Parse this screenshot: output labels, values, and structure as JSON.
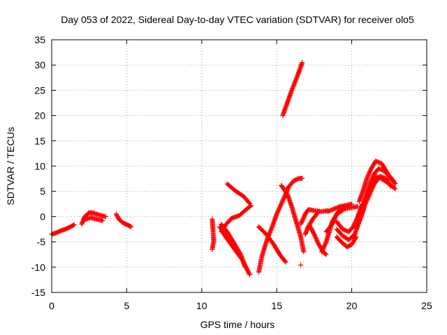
{
  "chart_data": {
    "type": "scatter",
    "title": "Day 053 of 2022, Sidereal Day-to-day VTEC variation (SDTVAR) for receiver olo5",
    "xlabel": "GPS time / hours",
    "ylabel": "SDTVAR / TECUs",
    "xlim": [
      0,
      25
    ],
    "ylim": [
      -15,
      35
    ],
    "xticks": [
      "0",
      "5",
      "10",
      "15",
      "20",
      "25"
    ],
    "yticks": [
      "-15",
      "-10",
      "-5",
      "0",
      "5",
      "10",
      "15",
      "20",
      "25",
      "30",
      "35"
    ],
    "xtick_values": [
      0,
      5,
      10,
      15,
      20,
      25
    ],
    "ytick_values": [
      -15,
      -10,
      -5,
      0,
      5,
      10,
      15,
      20,
      25,
      30,
      35
    ],
    "grid": true,
    "marker": "+",
    "marker_color": "#ff0000",
    "segments": [
      [
        [
          0.0,
          -3.5
        ],
        [
          0.3,
          -3.2
        ],
        [
          0.6,
          -2.8
        ],
        [
          0.9,
          -2.5
        ],
        [
          1.2,
          -2.1
        ],
        [
          1.5,
          -1.6
        ]
      ],
      [
        [
          2.0,
          -1.5
        ],
        [
          2.2,
          0.0
        ],
        [
          2.5,
          0.8
        ],
        [
          2.8,
          0.7
        ],
        [
          3.2,
          0.3
        ],
        [
          3.6,
          0.0
        ]
      ],
      [
        [
          2.2,
          -0.6
        ],
        [
          2.6,
          -0.2
        ],
        [
          3.0,
          -0.5
        ],
        [
          3.4,
          -0.8
        ]
      ],
      [
        [
          4.3,
          0.5
        ],
        [
          4.5,
          -0.6
        ],
        [
          4.8,
          -1.3
        ],
        [
          5.1,
          -1.7
        ],
        [
          5.3,
          -2.0
        ]
      ],
      [
        [
          10.7,
          -0.5
        ],
        [
          10.75,
          -2.5
        ],
        [
          10.8,
          -4.8
        ],
        [
          10.7,
          -6.5
        ]
      ],
      [
        [
          11.2,
          -2.0
        ],
        [
          11.6,
          -4.0
        ],
        [
          12.2,
          -6.5
        ],
        [
          12.7,
          -8.5
        ],
        [
          13.2,
          -11.5
        ]
      ],
      [
        [
          11.3,
          -1.5
        ],
        [
          11.7,
          -3.0
        ],
        [
          12.1,
          -5.0
        ],
        [
          12.6,
          -7.5
        ],
        [
          12.9,
          -10.0
        ]
      ],
      [
        [
          11.3,
          -3.0
        ],
        [
          11.6,
          -1.6
        ],
        [
          12.0,
          -0.3
        ],
        [
          12.5,
          0.2
        ],
        [
          13.0,
          1.5
        ],
        [
          13.3,
          2.2
        ]
      ],
      [
        [
          11.7,
          6.5
        ],
        [
          12.2,
          5.2
        ],
        [
          12.8,
          4.0
        ],
        [
          13.2,
          2.6
        ]
      ],
      [
        [
          13.8,
          -11.0
        ],
        [
          14.0,
          -8.0
        ],
        [
          14.2,
          -6.0
        ],
        [
          14.4,
          -4.2
        ],
        [
          14.7,
          -2.0
        ],
        [
          15.0,
          0.5
        ],
        [
          15.3,
          2.5
        ],
        [
          15.6,
          4.5
        ],
        [
          15.8,
          6.0
        ]
      ],
      [
        [
          13.8,
          -2.0
        ],
        [
          14.3,
          -3.5
        ],
        [
          14.8,
          -5.5
        ],
        [
          15.2,
          -7.5
        ],
        [
          15.6,
          -9.0
        ]
      ],
      [
        [
          15.3,
          6.2
        ],
        [
          15.7,
          4.5
        ],
        [
          16.0,
          2.0
        ],
        [
          16.3,
          -1.0
        ],
        [
          16.6,
          -4.0
        ],
        [
          16.8,
          -7.0
        ]
      ],
      [
        [
          15.4,
          20.0
        ],
        [
          15.7,
          22.5
        ],
        [
          16.0,
          25.0
        ],
        [
          16.4,
          28.0
        ],
        [
          16.7,
          30.5
        ]
      ],
      [
        [
          15.7,
          5.5
        ],
        [
          16.1,
          7.0
        ],
        [
          16.4,
          7.5
        ],
        [
          16.7,
          7.6
        ]
      ],
      [
        [
          16.6,
          -9.6
        ]
      ],
      [
        [
          16.6,
          -1.5
        ],
        [
          16.9,
          0.5
        ],
        [
          17.1,
          1.4
        ],
        [
          17.5,
          1.2
        ],
        [
          18.0,
          1.0
        ],
        [
          18.4,
          1.2
        ]
      ],
      [
        [
          16.9,
          -3.5
        ],
        [
          17.1,
          -2.0
        ],
        [
          17.4,
          -0.5
        ],
        [
          17.8,
          1.0
        ]
      ],
      [
        [
          17.2,
          -1.8
        ],
        [
          17.5,
          -3.5
        ],
        [
          17.8,
          -5.5
        ],
        [
          18.1,
          -7.0
        ],
        [
          18.3,
          -7.5
        ]
      ],
      [
        [
          18.3,
          -3.0
        ],
        [
          18.7,
          -1.5
        ],
        [
          19.0,
          0.5
        ],
        [
          19.3,
          1.8
        ],
        [
          19.5,
          2.0
        ]
      ],
      [
        [
          18.4,
          1.0
        ],
        [
          18.8,
          1.5
        ],
        [
          19.2,
          2.0
        ],
        [
          19.6,
          2.2
        ],
        [
          20.0,
          2.5
        ]
      ],
      [
        [
          18.0,
          -7.0
        ],
        [
          18.3,
          -5.0
        ],
        [
          18.5,
          -3.0
        ],
        [
          18.7,
          -1.0
        ],
        [
          19.0,
          0.5
        ],
        [
          19.5,
          1.5
        ],
        [
          20.0,
          1.8
        ],
        [
          20.4,
          2.0
        ]
      ],
      [
        [
          19.0,
          -1.0
        ],
        [
          19.4,
          -2.5
        ],
        [
          19.8,
          -3.0
        ],
        [
          20.1,
          -2.0
        ],
        [
          20.4,
          0.0
        ],
        [
          20.7,
          2.5
        ]
      ],
      [
        [
          19.0,
          -2.5
        ],
        [
          19.4,
          -3.8
        ],
        [
          19.8,
          -4.6
        ],
        [
          20.2,
          -3.5
        ],
        [
          20.5,
          -1.0
        ],
        [
          20.8,
          1.5
        ]
      ],
      [
        [
          19.0,
          -4.0
        ],
        [
          19.3,
          -5.0
        ],
        [
          19.7,
          -6.0
        ],
        [
          20.0,
          -5.5
        ],
        [
          20.3,
          -4.0
        ]
      ],
      [
        [
          20.5,
          3.0
        ],
        [
          20.8,
          5.5
        ],
        [
          21.0,
          7.5
        ],
        [
          21.3,
          9.5
        ],
        [
          21.6,
          11.0
        ],
        [
          22.0,
          10.5
        ],
        [
          22.4,
          8.5
        ],
        [
          22.8,
          7.0
        ]
      ],
      [
        [
          20.6,
          1.0
        ],
        [
          20.9,
          3.5
        ],
        [
          21.2,
          6.5
        ],
        [
          21.5,
          8.5
        ],
        [
          21.8,
          9.5
        ],
        [
          22.2,
          9.0
        ],
        [
          22.6,
          7.5
        ],
        [
          22.9,
          6.5
        ]
      ],
      [
        [
          20.7,
          2.0
        ],
        [
          21.0,
          4.0
        ],
        [
          21.3,
          6.0
        ],
        [
          21.6,
          8.0
        ],
        [
          22.0,
          7.5
        ],
        [
          22.5,
          6.5
        ],
        [
          22.9,
          5.5
        ]
      ],
      [
        [
          20.3,
          -2.0
        ],
        [
          20.6,
          0.0
        ],
        [
          20.9,
          2.5
        ],
        [
          21.2,
          4.5
        ],
        [
          21.5,
          6.5
        ],
        [
          21.9,
          8.0
        ],
        [
          22.3,
          7.5
        ],
        [
          22.6,
          6.0
        ]
      ]
    ]
  }
}
